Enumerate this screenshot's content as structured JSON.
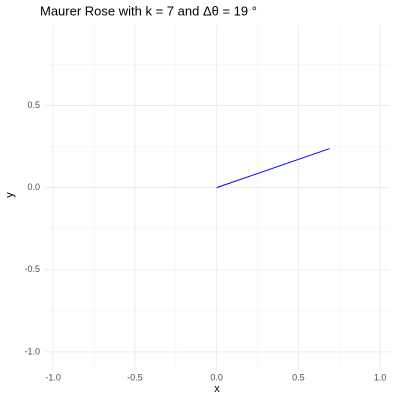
{
  "chart_data": {
    "type": "line",
    "title": "Maurer Rose with k = 7 and Δθ = 19 °",
    "x_label": "x",
    "y_label": "y",
    "x": [
      0,
      0.691
    ],
    "values": [
      0,
      0.238
    ],
    "color": "#0000ff",
    "xlim": [
      -1.05,
      1.06
    ],
    "ylim": [
      -1.11,
      0.99
    ],
    "xticks": [
      {
        "value": -1,
        "label": "-1.0"
      },
      {
        "value": -0.5,
        "label": "-0.5"
      },
      {
        "value": 0,
        "label": "0.0"
      },
      {
        "value": 0.5,
        "label": "0.5"
      },
      {
        "value": 1,
        "label": "1.0"
      }
    ],
    "yticks": [
      {
        "value": -1,
        "label": "-1.0"
      },
      {
        "value": -0.5,
        "label": "-0.5"
      },
      {
        "value": 0,
        "label": "0.0"
      },
      {
        "value": 0.5,
        "label": "0.5"
      }
    ],
    "xminorticks": [
      -0.75,
      -0.25,
      0.25,
      0.75
    ],
    "yminorticks": [
      -0.75,
      -0.25,
      0.25,
      0.75
    ],
    "grid": true
  }
}
